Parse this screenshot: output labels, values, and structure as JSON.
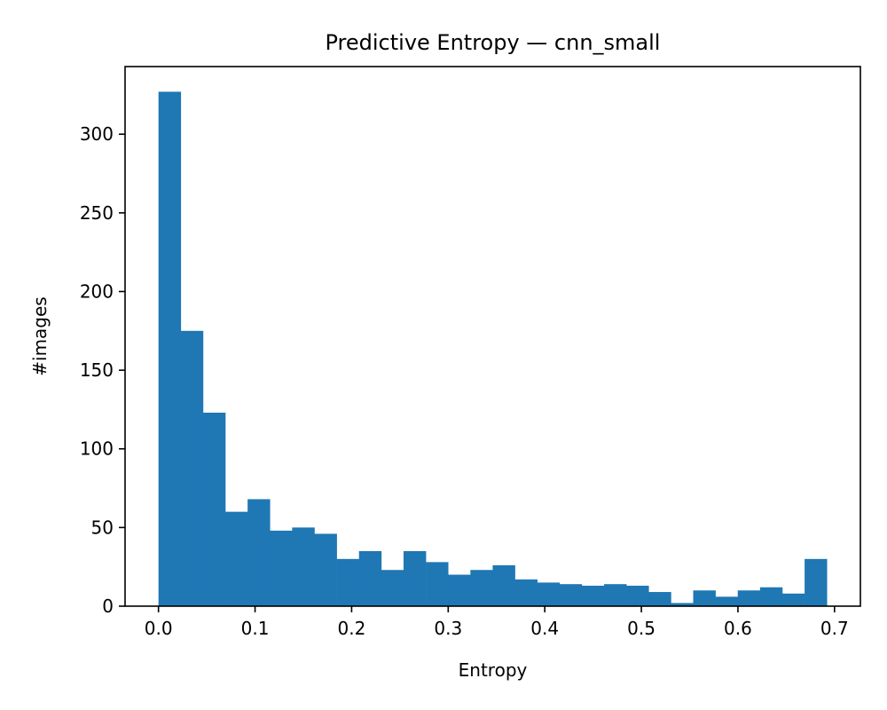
{
  "chart_data": {
    "type": "bar",
    "title": "Predictive Entropy — cnn_small",
    "xlabel": "Entropy",
    "ylabel": "#images",
    "bar_color": "#1f77b4",
    "bin_start": 0.0,
    "bin_width": 0.02307,
    "values": [
      327,
      175,
      123,
      60,
      68,
      48,
      50,
      46,
      30,
      35,
      23,
      35,
      28,
      20,
      23,
      26,
      17,
      15,
      14,
      13,
      14,
      13,
      9,
      2,
      10,
      6,
      10,
      12,
      8,
      30
    ],
    "xlim": [
      -0.0346,
      0.7268
    ],
    "ylim": [
      0,
      343
    ],
    "xticks": [
      {
        "value": 0.0,
        "label": "0.0"
      },
      {
        "value": 0.1,
        "label": "0.1"
      },
      {
        "value": 0.2,
        "label": "0.2"
      },
      {
        "value": 0.3,
        "label": "0.3"
      },
      {
        "value": 0.4,
        "label": "0.4"
      },
      {
        "value": 0.5,
        "label": "0.5"
      },
      {
        "value": 0.6,
        "label": "0.6"
      },
      {
        "value": 0.7,
        "label": "0.7"
      }
    ],
    "yticks": [
      {
        "value": 0,
        "label": "0"
      },
      {
        "value": 50,
        "label": "50"
      },
      {
        "value": 100,
        "label": "100"
      },
      {
        "value": 150,
        "label": "150"
      },
      {
        "value": 200,
        "label": "200"
      },
      {
        "value": 250,
        "label": "250"
      },
      {
        "value": 300,
        "label": "300"
      }
    ],
    "grid": false,
    "legend": "none"
  }
}
